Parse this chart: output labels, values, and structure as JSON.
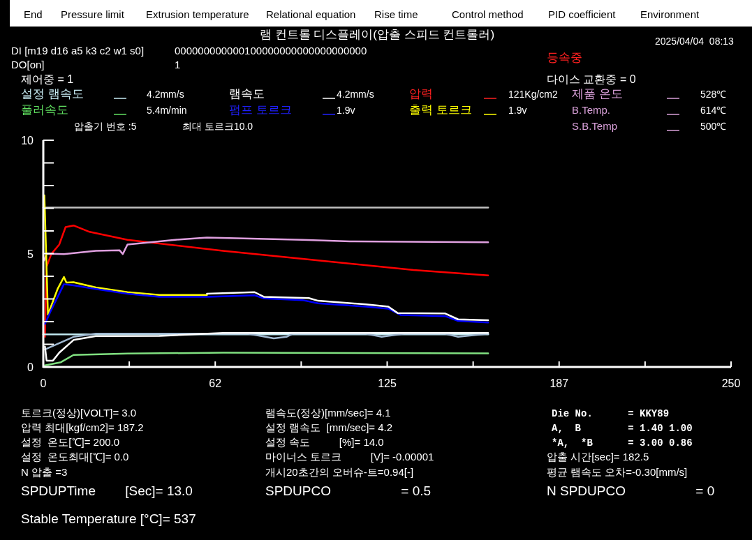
{
  "chart_data": {
    "type": "line",
    "title": "램 컨트롤 디스플레이(압출 스피드 컨트롤러)",
    "xlim": [
      0,
      250
    ],
    "ylim": [
      0,
      10
    ],
    "xticks": [
      0,
      {
        "value": 31.25,
        "label": null
      },
      {
        "value": 62.5,
        "label": "62"
      },
      {
        "value": 93.75,
        "label": null
      },
      125,
      {
        "value": 156.25,
        "label": null
      },
      {
        "value": 187.5,
        "label": "187"
      },
      {
        "value": 218.75,
        "label": null
      },
      250
    ],
    "yticks": [
      0,
      {
        "value": 1,
        "label": null
      },
      {
        "value": 2,
        "label": null
      },
      {
        "value": 3,
        "label": null
      },
      {
        "value": 4,
        "label": null
      },
      5,
      {
        "value": 6,
        "label": null
      },
      {
        "value": 7,
        "label": null
      },
      {
        "value": 8,
        "label": null
      },
      {
        "value": 9,
        "label": null
      },
      10
    ],
    "grid": false,
    "line_style": "solid",
    "series": [
      {
        "color": "#c0c0c0",
        "x": [
          0,
          161.7
        ],
        "values": [
          7.03,
          7.03
        ]
      },
      {
        "color": "#ff0000",
        "x": [
          0,
          0.6,
          1.2,
          2.9,
          5.8,
          8.1,
          11,
          16.8,
          30.6,
          65.3,
          99.9,
          134.6,
          161.7
        ],
        "values": [
          1.5,
          1.33,
          4.42,
          4.98,
          5.4,
          6.17,
          6.24,
          5.96,
          5.61,
          5.12,
          4.7,
          4.28,
          4.04
        ]
      },
      {
        "color": "#e0a0e0",
        "x": [
          0.3,
          1.2,
          7.5,
          19.1,
          27.7,
          28.9,
          30.6,
          36.4,
          47.9,
          59.5,
          94.2,
          111.5,
          161.7
        ],
        "values": [
          4.7,
          5.0,
          4.98,
          5.12,
          5.15,
          4.98,
          5.4,
          5.47,
          5.61,
          5.71,
          5.61,
          5.54,
          5.5
        ]
      },
      {
        "color": "#c0e8f0",
        "x": [
          0,
          161.7
        ],
        "values": [
          1.44,
          1.44
        ]
      },
      {
        "color": "#a0b8d0",
        "x": [
          0.6,
          11,
          19.1,
          74.5,
          83.8,
          88.4,
          90.7,
          117.3,
          123,
          131.1,
          146.1,
          150.8,
          161.7
        ],
        "values": [
          0.77,
          1.33,
          1.47,
          1.47,
          1.26,
          1.33,
          1.47,
          1.47,
          1.33,
          1.47,
          1.47,
          1.33,
          1.47
        ]
      },
      {
        "color": "#ffffff",
        "x": [
          0.6,
          1.2,
          3.5,
          5.8,
          11,
          19.1,
          42.2,
          65.3,
          161.7
        ],
        "values": [
          0.9,
          0.28,
          0.28,
          0.63,
          1.19,
          1.36,
          1.37,
          1.5,
          1.5
        ]
      },
      {
        "color": "#80e080",
        "x": [
          0.6,
          6.4,
          11,
          30.6,
          65.3,
          161.7
        ],
        "values": [
          0.07,
          0.21,
          0.53,
          0.59,
          0.63,
          0.6
        ]
      },
      {
        "color": "#ffff00",
        "x": [
          0.4,
          1.7,
          5.2,
          7.5,
          8.4,
          11,
          19.1,
          30.6,
          42.2,
          59.5
        ],
        "values": [
          7.57,
          2.31,
          3.44,
          3.97,
          3.72,
          3.74,
          3.51,
          3.3,
          3.18,
          3.18
        ]
      },
      {
        "color": "#0000ff",
        "x": [
          0.6,
          2.9,
          7.5,
          11,
          19.1,
          30.6,
          42.2,
          59.5,
          76.8,
          80.3,
          94.2,
          99.9,
          117.3,
          125.4,
          130,
          146.1,
          150.8,
          161.7
        ],
        "values": [
          1.89,
          2.52,
          3.65,
          3.6,
          3.44,
          3.23,
          3.09,
          3.09,
          3.16,
          3.02,
          2.95,
          2.81,
          2.66,
          2.57,
          2.29,
          2.24,
          2.03,
          1.96
        ]
      },
      {
        "color": "#ffffff",
        "x": [
          59.5,
          76.8,
          80.3,
          96.5,
          99.9,
          117.3,
          125.4,
          128.8,
          146.1,
          150.8,
          161.7
        ],
        "values": [
          3.23,
          3.3,
          3.09,
          3.04,
          2.92,
          2.76,
          2.66,
          2.38,
          2.36,
          2.1,
          2.06
        ]
      }
    ],
    "annotations": [
      "End",
      "Pressure limit",
      "Extrusion temperature",
      "Relational equation",
      "Rise time",
      "Control method",
      "PID coefficient",
      "Environment",
      "2025/04/04  08:13",
      "DI [m19 d16 a5 k3 c2 w1 s0]",
      "000000000000100000000000000000000",
      "DO[on]",
      "1",
      "등속중",
      "제어중 = 1",
      "다이스 교환중 = 0",
      "설정 램속도",
      "4.2mm/s",
      "램속도",
      "4.2mm/s",
      "압력",
      "121Kg/cm2",
      "제품 온도",
      "528℃",
      "풀러속도",
      "5.4m/min",
      "펌프 토르크",
      "1.9v",
      "출력 토르크",
      "1.9v",
      "B.Temp.",
      "614℃",
      "압출기 번호 :5",
      "최대 토르크10.0",
      "S.B.Temp",
      "500℃",
      "토르크(정상)[VOLT]= 3.0",
      "압력 최대[kgf/cm2]= 187.2",
      "설정  온도[℃]= 200.0",
      "설정  온도최대[℃]= 0.0",
      "N 압출 =3",
      "SPDUPTime        [Sec]= 13.0",
      "Stable Temperature [°C]= 537",
      "램속도(정상)[mm/sec]= 4.1",
      "설정 램속도  [mm/sec]= 4.2",
      "설정 속도          [%]= 14.0",
      "마이너스 토르크          [V]= -0.00001",
      "개시20초간의 오버슈-트=0.94[-]",
      "SPDUPCO                   = 0.5",
      "Die No.      = KKY89",
      "A,  B        = 1.40 1.00",
      "*A,  *B      = 3.00 0.86",
      "압출 시간[sec]= 182.5",
      "평균 램속도 오차=-0.30[mm/s]",
      "N SPDUPCO                   = 0"
    ]
  }
}
